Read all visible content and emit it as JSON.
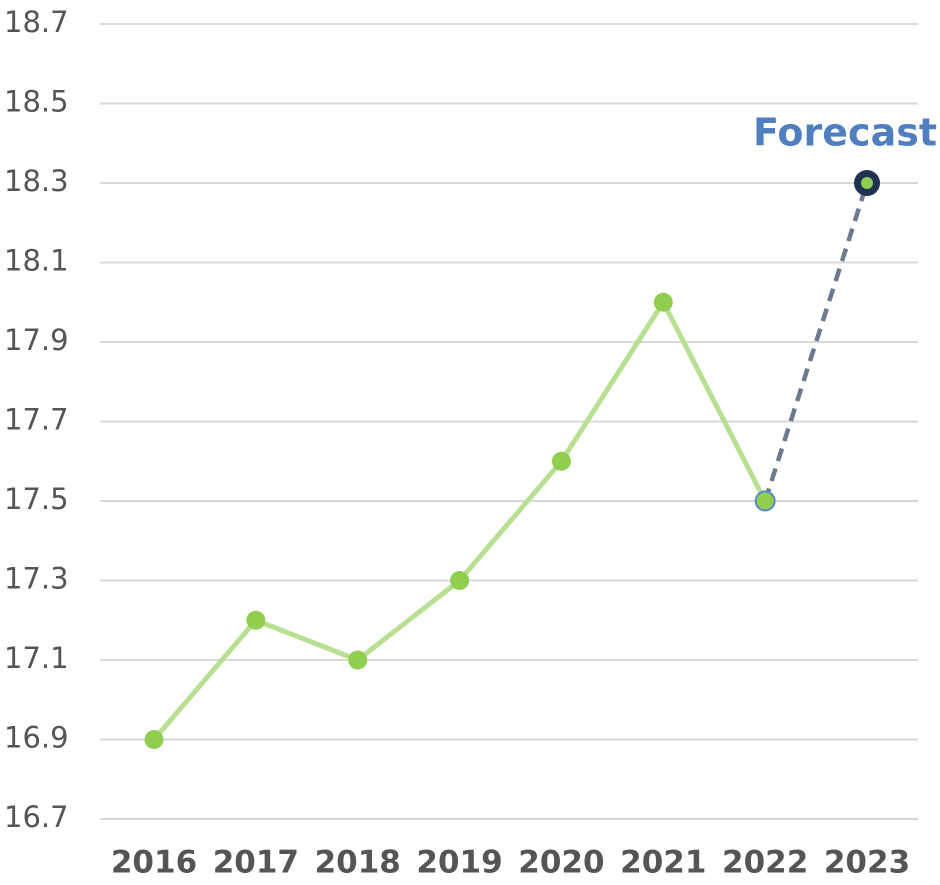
{
  "chart_data": {
    "type": "line",
    "categories": [
      "2016",
      "2017",
      "2018",
      "2019",
      "2020",
      "2021",
      "2022",
      "2023"
    ],
    "series": [
      {
        "color": "#8fce4f",
        "values": [
          16.9,
          17.2,
          17.1,
          17.3,
          17.6,
          18.0,
          17.5,
          18.3
        ]
      }
    ],
    "ylim": [
      16.7,
      18.7
    ],
    "yticks": [
      16.7,
      16.9,
      17.1,
      17.3,
      17.5,
      17.7,
      17.9,
      18.1,
      18.3,
      18.5,
      18.7
    ],
    "grid": true,
    "annotations": [
      {
        "text": "Forecast",
        "category": "2023"
      }
    ]
  }
}
